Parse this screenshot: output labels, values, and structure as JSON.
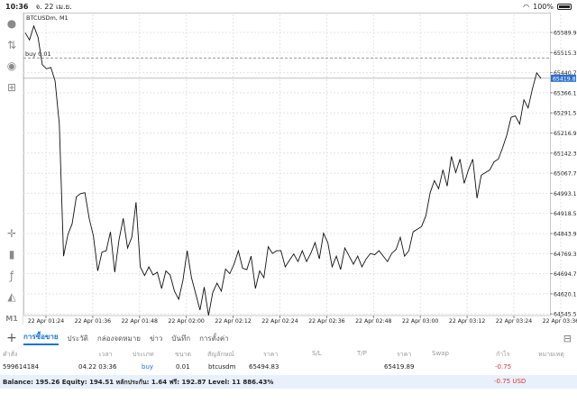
{
  "status_bar": {
    "time": "10:36",
    "date": "จ. 22 เม.ย.",
    "battery": "100%"
  },
  "chart": {
    "title": "BTCUSDm, M1",
    "order_line_label": "buy 0.01",
    "current_price": "65419.89",
    "price_labels": [
      "65589.90",
      "65515.30",
      "65440.70",
      "65366.10",
      "65291.50",
      "65216.90",
      "65142.30",
      "65067.70",
      "64993.10",
      "64918.50",
      "64843.90",
      "64769.30",
      "64694.70",
      "64620.10",
      "64545.50"
    ],
    "time_labels": [
      "22 Apr 01:24",
      "22 Apr 01:36",
      "22 Apr 01:48",
      "22 Apr 02:00",
      "22 Apr 02:12",
      "22 Apr 02:24",
      "22 Apr 02:36",
      "22 Apr 02:48",
      "22 Apr 03:00",
      "22 Apr 03:12",
      "22 Apr 03:24",
      "22 Apr 03:36"
    ],
    "line_color": "#111111",
    "price_tag_color": "#2d6ecf",
    "series": [
      65589,
      65562,
      65614,
      65572,
      65470,
      65455,
      65460,
      65410,
      65250,
      64760,
      64840,
      64880,
      64980,
      64992,
      64995,
      64900,
      64835,
      64705,
      64775,
      64780,
      64850,
      64700,
      64820,
      64900,
      64790,
      64830,
      64960,
      64720,
      64688,
      64720,
      64690,
      64700,
      64640,
      64705,
      64690,
      64630,
      64600,
      64670,
      64780,
      64680,
      64620,
      64560,
      64645,
      64540,
      64625,
      64660,
      64630,
      64712,
      64695,
      64730,
      64780,
      64715,
      64710,
      64760,
      64640,
      64705,
      64680,
      64795,
      64770,
      64780,
      64780,
      64720,
      64745,
      64768,
      64740,
      64780,
      64740,
      64770,
      64810,
      64750,
      64845,
      64810,
      64720,
      64760,
      64710,
      64790,
      64760,
      64730,
      64760,
      64720,
      64750,
      64770,
      64765,
      64780,
      64760,
      64740,
      64770,
      64785,
      64830,
      64760,
      64780,
      64850,
      64860,
      64870,
      64910,
      64995,
      65040,
      65010,
      65080,
      65020,
      65130,
      65070,
      65120,
      65030,
      65080,
      65120,
      64975,
      65060,
      65070,
      65080,
      65110,
      65120,
      65162,
      65210,
      65275,
      65280,
      65250,
      65340,
      65310,
      65380,
      65440,
      65420
    ]
  },
  "tabs": [
    "การซื้อขาย",
    "ประวัติ",
    "กล่องจดหมาย",
    "ข่าว",
    "บันทึก",
    "การตั้งค่า"
  ],
  "table": {
    "headers": {
      "ticket": "คำสั่ง",
      "time": "เวลา",
      "type": "ประเภท",
      "size": "ขนาด",
      "symbol": "สัญลักษณ์",
      "price": "ราคา",
      "sl": "S/L",
      "tp": "T/P",
      "cur_price": "ราคา",
      "swap": "Swap",
      "profit": "กำไร",
      "comment": "หมายเหตุ"
    },
    "row": {
      "ticket": "599614184",
      "time": "04.22 03:36",
      "type": "buy",
      "size": "0.01",
      "symbol": "btcusdm",
      "price": "65494.83",
      "cur_price": "65419.89",
      "profit": "-0.75"
    }
  },
  "balance": {
    "summary": "Balance: 195.26 Equity: 194.51 หลักประกัน: 1.64 ฟรี: 192.87 Level: 11 886.43%",
    "loss": "-0.75  USD"
  }
}
